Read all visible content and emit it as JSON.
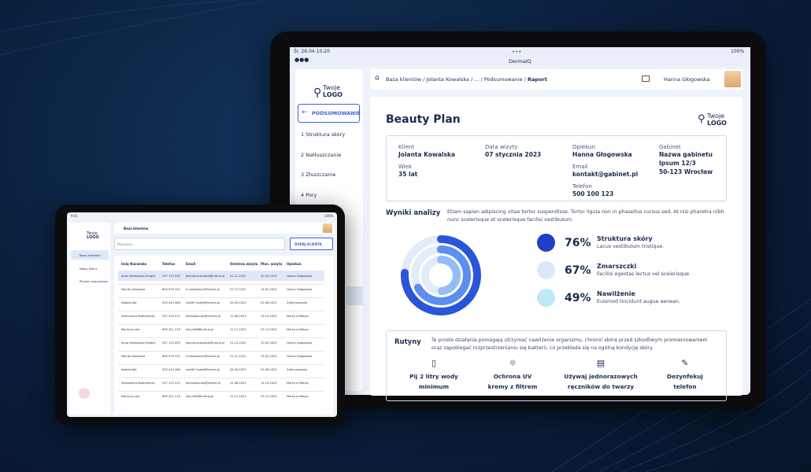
{
  "big_tablet": {
    "status_time": "Śr. 26.04 10:20",
    "battery": "100%",
    "app_name": "DermaIQ",
    "logo": {
      "line1": "Twoje",
      "line2": "LOGO"
    },
    "back_button": "PODSUMOWANIE",
    "menu": [
      "1 Struktura skóry",
      "2 Natłuszczanie",
      "3 Złuszczanie",
      "4 Pory"
    ],
    "breadcrumb": {
      "path": "Baza klientów / Jolanta Kowalska / ... / Podsumowanie / ",
      "current": "Raport"
    },
    "user": "Hanna Głogowska",
    "report": {
      "title": "Beauty Plan",
      "info_columns": [
        [
          {
            "label": "Klient",
            "value": "Jolanta Kowalska"
          },
          {
            "label": "Wiek",
            "value": "35 lat"
          }
        ],
        [
          {
            "label": "Data wizyty",
            "value": "07 stycznia 2023"
          }
        ],
        [
          {
            "label": "Opiekun",
            "value": "Hanna Głogowska"
          },
          {
            "label": "Email",
            "value": "kontakt@gabinet.pl"
          },
          {
            "label": "Telefon",
            "value": "500 100 123"
          }
        ],
        [
          {
            "label": "Gabinet",
            "value": "Nazwa gabinetu\nIpsum 12/3\n50-123 Wrocław"
          }
        ]
      ],
      "analysis_title": "Wyniki analizy",
      "analysis_text": "Etiam sapien adipiscing vitae tortor suspendisse. Tortor ligula non in phasellus cursus sed. At nisi pharetra nibh nunc scelerisque et scelerisque facilisi vestibulum.",
      "metrics": [
        {
          "value": 76,
          "label": "76%",
          "name": "Struktura skóry",
          "description": "Lacus vestibulum tristique."
        },
        {
          "value": 67,
          "label": "67%",
          "name": "Zmarszczki",
          "description": "Facilisi egestas lectus vel scelerisque."
        },
        {
          "value": 49,
          "label": "49%",
          "name": "Nawilżenie",
          "description": "Euismod tincidunt augue aenean."
        }
      ],
      "routines_title": "Rutyny",
      "routines_text": "Te proste działania pomagają utrzymać nawilżenie organizmu, chronić skórę przed szkodliwym promieniowaniem oraz zapobiegać rozprzestrzenianiu się bakterii, co przekłada się na ogólną kondycję skóry.",
      "routines": [
        {
          "title": "Pij 2 litry wody",
          "subtitle": "minimum"
        },
        {
          "title": "Ochrona UV",
          "subtitle": "kremy z filtrem"
        },
        {
          "title": "Używaj jednorazowych",
          "subtitle": "ręczników do twarzy"
        },
        {
          "title": "Dezynfekuj",
          "subtitle": "telefon"
        }
      ]
    }
  },
  "small_tablet": {
    "status_time": "9:41",
    "battery": "100%",
    "logo": {
      "line1": "Twoje",
      "line2": "LOGO"
    },
    "menu": [
      "Baza klientów",
      "Nowy klient",
      "Pomiar anonimowy"
    ],
    "header": "Baza klientów",
    "search_placeholder": "Wyszukaj",
    "add_button": "DODAJ KLIENTA",
    "table": {
      "columns": [
        "Imię Nazwisko",
        "Telefon",
        "Email",
        "Ostatnia wizyta",
        "Plan. wizyta",
        "Opiekun"
      ],
      "rows": [
        [
          "Anna Kozłowska-Śmigiel",
          "537 123 000",
          "jolanta.kowalska@interia.pl",
          "01.12.2022",
          "10.02.2023",
          "Hanna Głogowska"
        ],
        [
          "Monika Nowacka",
          "600 976 132",
          "m.kowalska1@interia.pl",
          "07.12.2022",
          "15.02.2023",
          "Hanna Głogowska"
        ],
        [
          "Natalia Kot",
          "505 443 286",
          "natk87.kotek@interia.pl",
          "26.05.2023",
          "01.06.2023",
          "Zofia Jaworska"
        ],
        [
          "Aleksandra Bodnarenko",
          "537 123 512",
          "bielowska.ola@interia.pl",
          "11.06.2023",
          "15.10.2023",
          "Martyna Małysz"
        ],
        [
          "Martyna Lola",
          "609 321 218",
          "lola.m86@interia.pl",
          "11.11.2023",
          "23.12.2023",
          "Martyna Małysz"
        ],
        [
          "Anna Kozłowska-Śmigiel",
          "537 123 000",
          "jolanta.kowalska@interia.pl",
          "01.12.2022",
          "10.02.2023",
          "Hanna Głogowska"
        ],
        [
          "Monika Nowacka",
          "600 976 132",
          "m.kowalska1@interia.pl",
          "07.12.2022",
          "15.02.2023",
          "Hanna Głogowska"
        ],
        [
          "Natalia Kot",
          "505 443 286",
          "natk87.kotek@interia.pl",
          "26.05.2023",
          "01.06.2023",
          "Zofia Jaworska"
        ],
        [
          "Aleksandra Bodnarenko",
          "537 123 512",
          "bielowska.ola@interia.pl",
          "11.06.2023",
          "15.10.2023",
          "Martyna Małysz"
        ],
        [
          "Martyna Lola",
          "609 321 218",
          "lola.m86@interia.pl",
          "11.11.2023",
          "23.12.2023",
          "Martyna Małysz"
        ]
      ]
    }
  }
}
